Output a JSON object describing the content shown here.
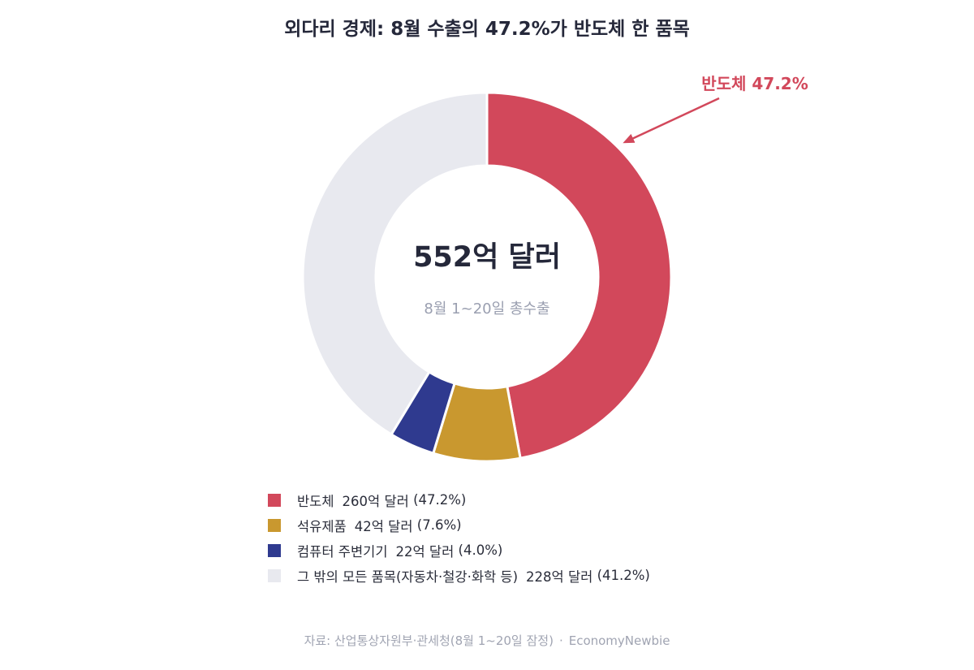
{
  "chart_data": {
    "type": "pie",
    "title": "외다리 경제: 8월 수출의 47.2%가 반도체 한 품목",
    "center_value": "552억 달러",
    "center_caption": "8월 1~20일 총수출",
    "callout": "반도체 47.2%",
    "slices": [
      {
        "name": "반도체",
        "value": 260,
        "amount_label": "260억 달러",
        "percent_label": "(47.2%)",
        "color": "#d2485b"
      },
      {
        "name": "석유제품",
        "value": 42,
        "amount_label": "42억 달러",
        "percent_label": "(7.6%)",
        "color": "#c9982f"
      },
      {
        "name": "컴퓨터 주변기기",
        "value": 22,
        "amount_label": "22억 달러",
        "percent_label": "(4.0%)",
        "color": "#2f3a8f"
      },
      {
        "name": "그 밖의 모든 품목(자동차·철강·화학 등)",
        "value": 228,
        "amount_label": "228억 달러",
        "percent_label": "(41.2%)",
        "color": "#e8e9ef"
      }
    ],
    "legend_position": "bottom"
  },
  "source": {
    "text": "자료: 산업통상자원부·관세청(8월 1~20일 잠정)",
    "separator": "·",
    "brand": "EconomyNewbie"
  },
  "colors": {
    "title": "#25283a",
    "center_value": "#25283a",
    "center_caption": "#9a9fb0",
    "callout": "#d2485b",
    "source": "#a0a4b2"
  }
}
